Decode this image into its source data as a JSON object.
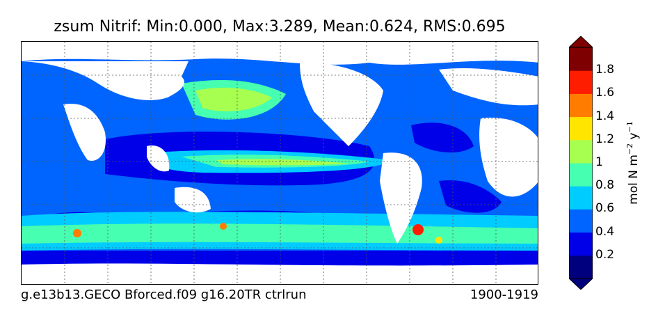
{
  "title": "zsum Nitrif: Min:0.000, Max:3.289, Mean:0.624, RMS:0.695",
  "footer": {
    "left": "g.e13b13.GECO Bforced.f09 g16.20TR ctrlrun",
    "right": "1900-1919"
  },
  "colorbar": {
    "label_main": "mol N m",
    "label_exp1": "−2",
    "label_mid": " y",
    "label_exp2": "−1",
    "ticks": [
      "0.2",
      "0.4",
      "0.6",
      "0.8",
      "1",
      "1.2",
      "1.4",
      "1.6",
      "1.8"
    ],
    "colors": [
      "#00007f",
      "#0000e8",
      "#0064ff",
      "#00ccff",
      "#47ffb0",
      "#a7ff50",
      "#ffe500",
      "#ff7c00",
      "#ff1d00",
      "#7f0000"
    ],
    "extend": "both"
  },
  "palette": {
    "land": "#ffffff",
    "ocean_low": "#0000e8",
    "ocean_deep": "#00007f"
  }
}
